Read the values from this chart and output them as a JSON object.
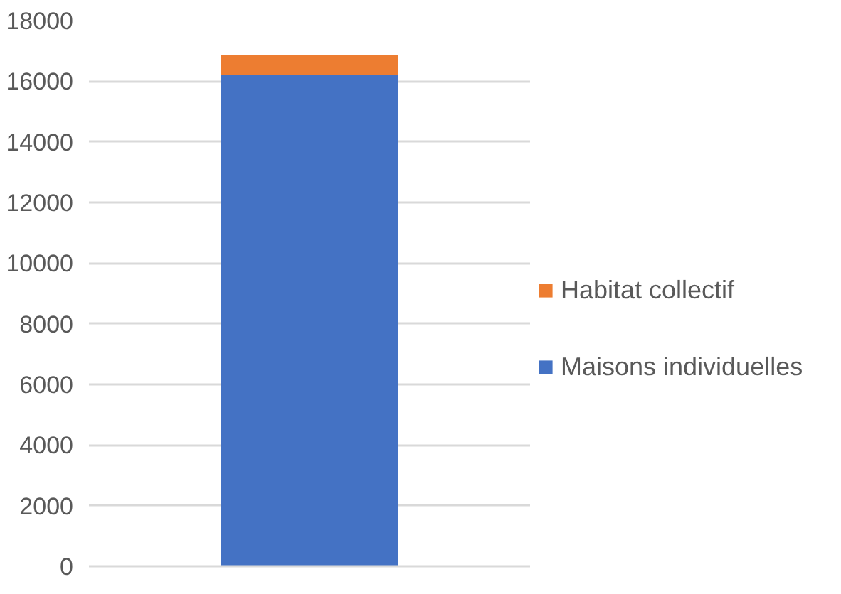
{
  "chart_data": {
    "type": "bar",
    "stacked": true,
    "categories": [
      null
    ],
    "series": [
      {
        "name": "Maisons individuelles",
        "color": "#4472c4",
        "values": [
          16200
        ]
      },
      {
        "name": "Habitat collectif",
        "color": "#ed7d31",
        "values": [
          650
        ]
      }
    ],
    "ylim": [
      0,
      18000
    ],
    "yticks": [
      0,
      2000,
      4000,
      6000,
      8000,
      10000,
      12000,
      14000,
      16000,
      18000
    ],
    "grid": "y",
    "legend": "right"
  }
}
